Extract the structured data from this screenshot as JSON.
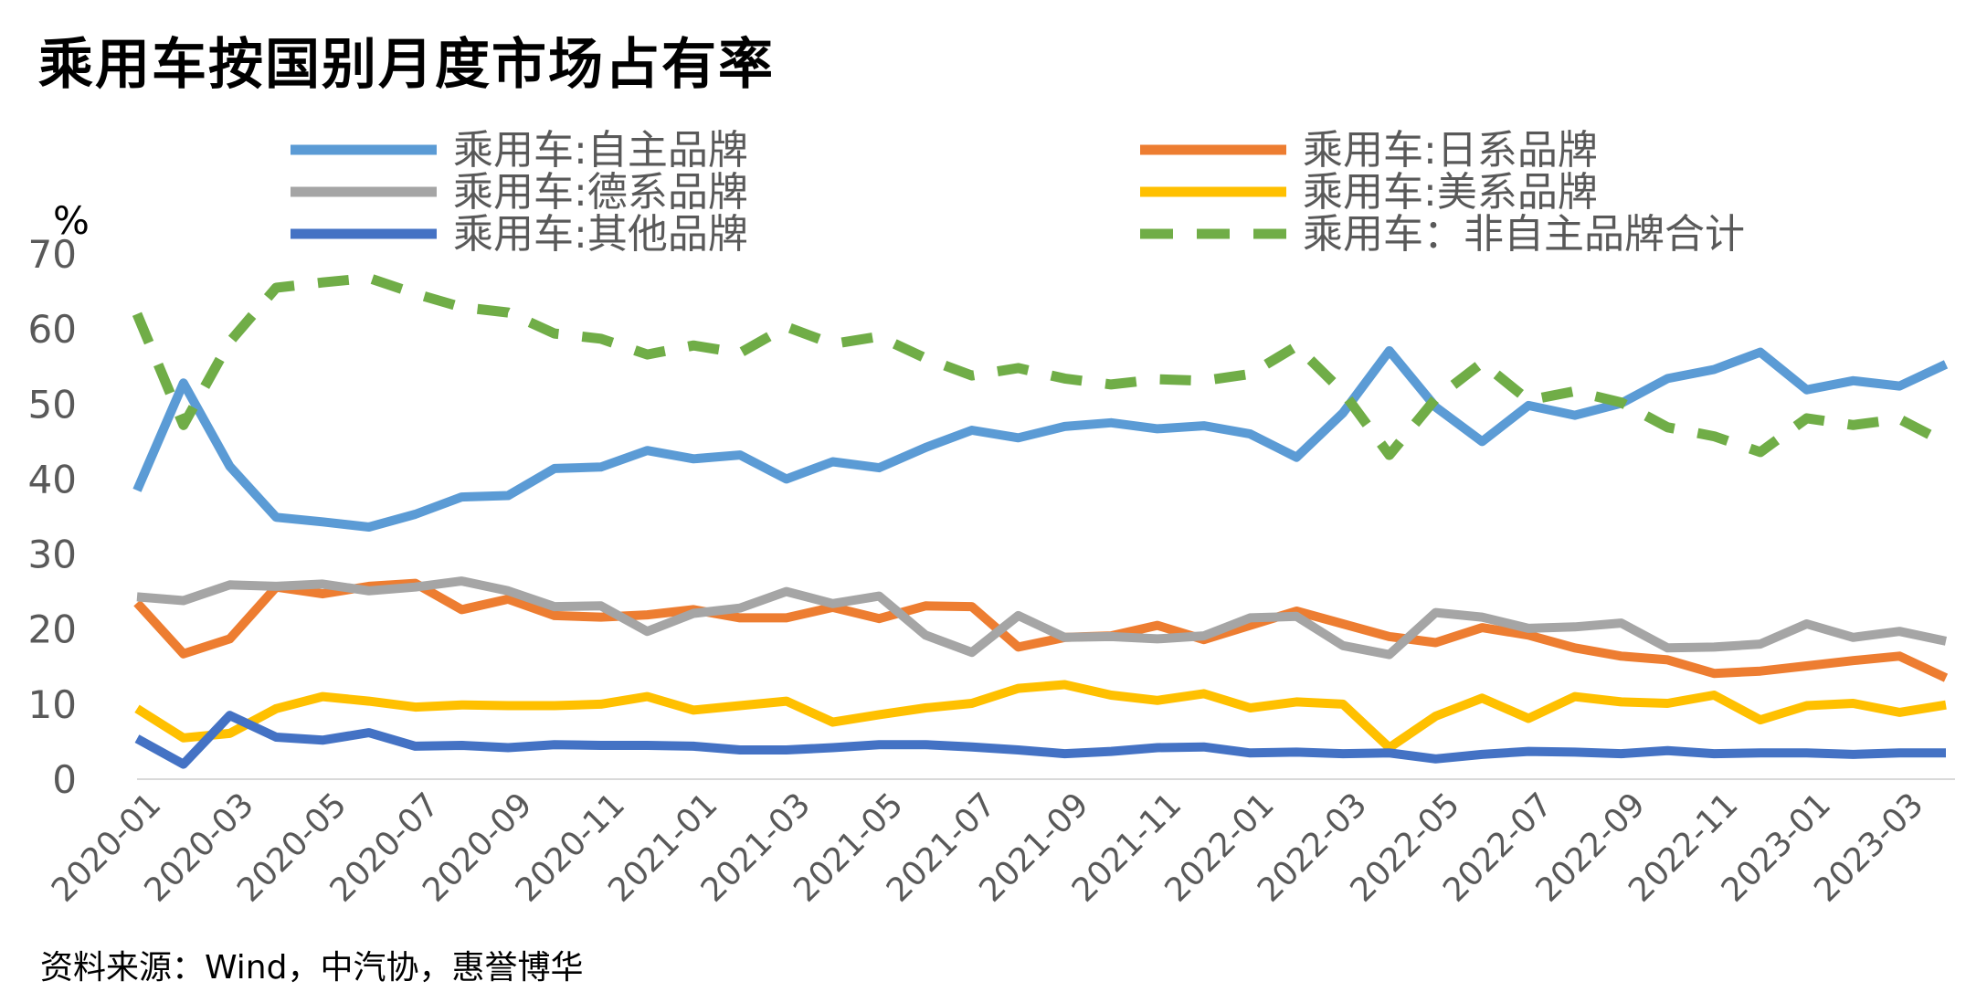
{
  "title": "乘用车按国别月度市场占有率",
  "source": "资料来源：Wind，中汽协，惠誉博华",
  "chart_data": {
    "type": "line",
    "ylabel": "%",
    "ylim": [
      0,
      70
    ],
    "yticks": [
      "0",
      "10",
      "20",
      "30",
      "40",
      "50",
      "60",
      "70"
    ],
    "xtick_labels": [
      "2020-01",
      "2020-03",
      "2020-05",
      "2020-07",
      "2020-09",
      "2020-11",
      "2021-01",
      "2021-03",
      "2021-05",
      "2021-07",
      "2021-09",
      "2021-11",
      "2022-01",
      "2022-03",
      "2022-05",
      "2022-07",
      "2022-09",
      "2022-11",
      "2023-01",
      "2023-03"
    ],
    "x": [
      "2020-01",
      "2020-02",
      "2020-03",
      "2020-04",
      "2020-05",
      "2020-06",
      "2020-07",
      "2020-08",
      "2020-09",
      "2020-10",
      "2020-11",
      "2020-12",
      "2021-01",
      "2021-02",
      "2021-03",
      "2021-04",
      "2021-05",
      "2021-06",
      "2021-07",
      "2021-08",
      "2021-09",
      "2021-10",
      "2021-11",
      "2021-12",
      "2022-01",
      "2022-02",
      "2022-03",
      "2022-04",
      "2022-05",
      "2022-06",
      "2022-07",
      "2022-08",
      "2022-09",
      "2022-10",
      "2022-11",
      "2022-12",
      "2023-01",
      "2023-02",
      "2023-03",
      "2023-04"
    ],
    "legend_placement": "top",
    "series": [
      {
        "name": "乘用车:自主品牌",
        "color": "#5B9BD5",
        "dash": false,
        "values": [
          38.5,
          52.8,
          41.7,
          34.9,
          34.3,
          33.6,
          35.3,
          37.6,
          37.8,
          41.4,
          41.6,
          43.8,
          42.7,
          43.2,
          40.0,
          42.3,
          41.5,
          44.2,
          46.5,
          45.5,
          47.0,
          47.5,
          46.7,
          47.1,
          46.0,
          42.9,
          48.8,
          57.1,
          49.6,
          45.0,
          49.8,
          48.5,
          50.1,
          53.4,
          54.6,
          56.9,
          51.9,
          53.1,
          52.4,
          55.3
        ]
      },
      {
        "name": "乘用车:日系品牌",
        "color": "#ED7D31",
        "dash": false,
        "values": [
          23.5,
          16.7,
          18.7,
          25.6,
          24.7,
          25.7,
          26.1,
          22.6,
          24.0,
          21.8,
          21.6,
          21.9,
          22.6,
          21.5,
          21.5,
          22.9,
          21.4,
          23.1,
          23.0,
          17.6,
          18.9,
          19.1,
          20.5,
          18.6,
          20.5,
          22.4,
          20.7,
          19.0,
          18.2,
          20.2,
          19.2,
          17.5,
          16.4,
          15.9,
          14.1,
          14.4,
          15.1,
          15.8,
          16.4,
          13.5
        ]
      },
      {
        "name": "乘用车:德系品牌",
        "color": "#A5A5A5",
        "dash": false,
        "values": [
          24.3,
          23.8,
          25.9,
          25.7,
          26.0,
          25.1,
          25.6,
          26.4,
          25.1,
          23.0,
          23.1,
          19.7,
          22.1,
          22.8,
          25.0,
          23.4,
          24.4,
          19.2,
          16.9,
          21.8,
          18.9,
          19.0,
          18.7,
          19.1,
          21.5,
          21.7,
          17.8,
          16.6,
          22.2,
          21.6,
          20.1,
          20.3,
          20.8,
          17.5,
          17.6,
          18.0,
          20.7,
          18.9,
          19.7,
          18.4
        ]
      },
      {
        "name": "乘用车:美系品牌",
        "color": "#FFC000",
        "dash": false,
        "values": [
          9.4,
          5.5,
          6.1,
          9.4,
          11.0,
          10.4,
          9.6,
          9.9,
          9.8,
          9.8,
          10.0,
          11.0,
          9.2,
          9.8,
          10.4,
          7.6,
          8.6,
          9.5,
          10.1,
          12.1,
          12.6,
          11.2,
          10.5,
          11.4,
          9.5,
          10.3,
          10.0,
          4.2,
          8.4,
          10.8,
          8.1,
          11.0,
          10.3,
          10.1,
          11.2,
          7.9,
          9.8,
          10.1,
          8.9,
          9.9
        ]
      },
      {
        "name": "乘用车:其他品牌",
        "color": "#4472C4",
        "dash": false,
        "values": [
          5.4,
          2.0,
          8.5,
          5.6,
          5.2,
          6.2,
          4.4,
          4.5,
          4.2,
          4.6,
          4.5,
          4.5,
          4.4,
          3.9,
          3.9,
          4.2,
          4.6,
          4.6,
          4.3,
          3.9,
          3.4,
          3.7,
          4.2,
          4.3,
          3.5,
          3.6,
          3.4,
          3.5,
          2.7,
          3.3,
          3.7,
          3.6,
          3.4,
          3.8,
          3.4,
          3.5,
          3.5,
          3.3,
          3.5,
          3.5
        ]
      },
      {
        "name": "乘用车：非自主品牌合计",
        "color": "#70AD47",
        "dash": true,
        "values": [
          62.0,
          47.2,
          58.3,
          65.5,
          66.2,
          66.8,
          64.7,
          62.9,
          62.2,
          59.4,
          58.7,
          56.6,
          57.8,
          56.8,
          60.3,
          58.0,
          59.0,
          56.1,
          53.8,
          54.8,
          53.4,
          52.6,
          53.3,
          53.1,
          54.0,
          57.7,
          51.6,
          43.2,
          50.7,
          55.5,
          50.5,
          51.7,
          50.2,
          46.9,
          45.7,
          43.6,
          48.1,
          47.2,
          48.0,
          44.8
        ]
      }
    ]
  }
}
